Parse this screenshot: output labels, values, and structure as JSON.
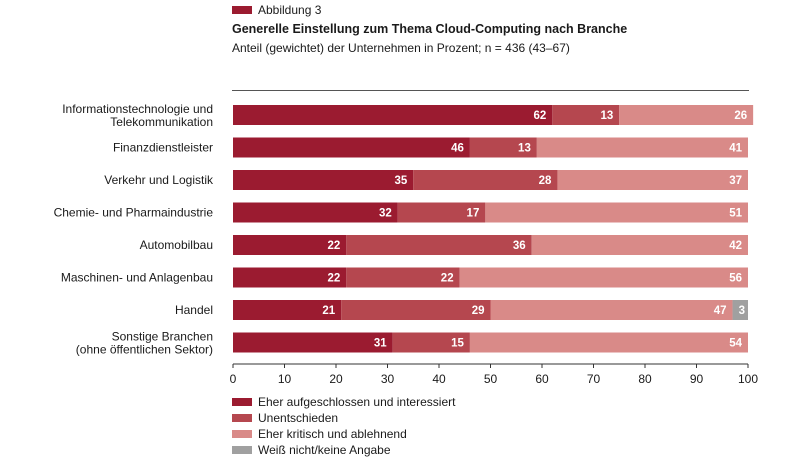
{
  "figure": {
    "tag": "Abbildung 3",
    "title": "Generelle Einstellung zum Thema Cloud-Computing nach Branche",
    "subtitle": "Anteil (gewichtet) der Unternehmen in Prozent; n = 436 (43–67)"
  },
  "chart_data": {
    "type": "bar",
    "orientation": "horizontal",
    "stacked": true,
    "categories": [
      "Informationstechnologie und Telekommunikation",
      "Finanzdienstleister",
      "Verkehr und Logistik",
      "Chemie- und Pharmaindustrie",
      "Automobilbau",
      "Maschinen- und Anlagenbau",
      "Handel",
      "Sonstige Branchen (ohne öffentlichen Sektor)"
    ],
    "series": [
      {
        "name": "Eher aufgeschlossen und interessiert",
        "color": "#9b1b30",
        "values": [
          62,
          46,
          35,
          32,
          22,
          22,
          21,
          31
        ]
      },
      {
        "name": "Unentschieden",
        "color": "#b5474f",
        "values": [
          13,
          13,
          28,
          17,
          36,
          22,
          29,
          15
        ]
      },
      {
        "name": "Eher kritisch und ablehnend",
        "color": "#d98a88",
        "values": [
          26,
          41,
          37,
          51,
          42,
          56,
          47,
          54
        ]
      },
      {
        "name": "Weiß nicht/keine Angabe",
        "color": "#a0a0a0",
        "values": [
          0,
          0,
          0,
          0,
          0,
          0,
          3,
          0
        ]
      }
    ],
    "xlim": [
      0,
      100
    ],
    "xticks": [
      0,
      10,
      20,
      30,
      40,
      50,
      60,
      70,
      80,
      90,
      100
    ],
    "legend_position": "bottom-left",
    "grid": false
  }
}
